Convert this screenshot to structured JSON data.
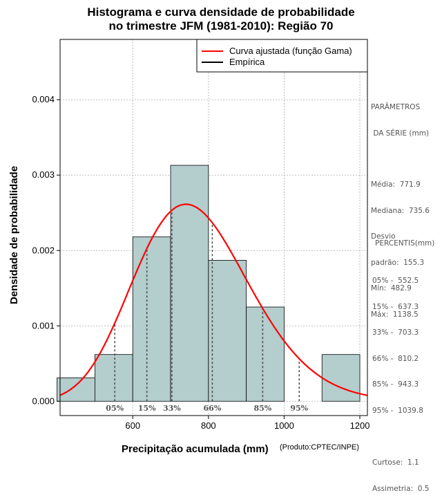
{
  "title_line1": "Histograma e curva densidade de probabilidade",
  "title_line2": "no trimestre JFM (1981-2010): Região 70",
  "credit": "(Produto:CPTEC/INPE)",
  "colors": {
    "bar_fill": "#b4cdcd",
    "curve": "#ff0000",
    "empirical": "#000000",
    "percentile_line": "#444444"
  },
  "chart_data": {
    "type": "bar",
    "xlabel": "Precipitação acumulada (mm)",
    "ylabel": "Densidade de probabilidade",
    "xlim": [
      408,
      1220
    ],
    "ylim": [
      -0.00019,
      0.0048
    ],
    "grid": true,
    "x_ticks": [
      600,
      800,
      1000,
      1200
    ],
    "y_ticks": [
      0.0,
      0.001,
      0.002,
      0.003,
      0.004
    ],
    "y_tick_labels": [
      "0.000",
      "0.001",
      "0.002",
      "0.003",
      "0.004"
    ],
    "bins": [
      {
        "x0": 400,
        "x1": 500,
        "density": 0.00031
      },
      {
        "x0": 500,
        "x1": 600,
        "density": 0.00062
      },
      {
        "x0": 600,
        "x1": 700,
        "density": 0.00218
      },
      {
        "x0": 700,
        "x1": 800,
        "density": 0.00313
      },
      {
        "x0": 800,
        "x1": 900,
        "density": 0.00187
      },
      {
        "x0": 900,
        "x1": 1000,
        "density": 0.00125
      },
      {
        "x0": 1000,
        "x1": 1100,
        "density": 0.0
      },
      {
        "x0": 1100,
        "x1": 1200,
        "density": 0.00062
      }
    ],
    "fitted_curve": {
      "name": "Curva ajustada (função Gama)",
      "distribution": "gamma",
      "shape": 24.7,
      "scale": 31.25
    },
    "legend": {
      "position": "top-right",
      "entries": [
        {
          "label": "Curva ajustada (função Gama)",
          "color": "#ff0000"
        },
        {
          "label": "Empírica",
          "color": "#000000"
        }
      ]
    },
    "percentiles": [
      {
        "label": "05%",
        "value": 552.5
      },
      {
        "label": "15%",
        "value": 637.3
      },
      {
        "label": "33%",
        "value": 703.3
      },
      {
        "label": "66%",
        "value": 810.2
      },
      {
        "label": "85%",
        "value": 943.3
      },
      {
        "label": "95%",
        "value": 1039.8
      }
    ]
  },
  "params": {
    "heading1": "PARÂMETROS",
    "heading2": " DA SÉRIE (mm)",
    "media": "Média:  771.9",
    "mediana": "Mediana:  735.6",
    "desvio1": "Desvio",
    "desvio2": "padrão:  155.3",
    "min": "Mín:  482.9",
    "max": "Máx:  1138.5"
  },
  "percentis_panel": {
    "heading": "PERCENTIS(mm)",
    "rows": [
      "05% -  552.5",
      "15% -  637.3",
      "33% -  703.3",
      "66% -  810.2",
      "85% -  943.3",
      "95% -  1039.8"
    ],
    "curtose": "Curtose:  1.1",
    "assimetria": "Assimetria:  0.5"
  }
}
